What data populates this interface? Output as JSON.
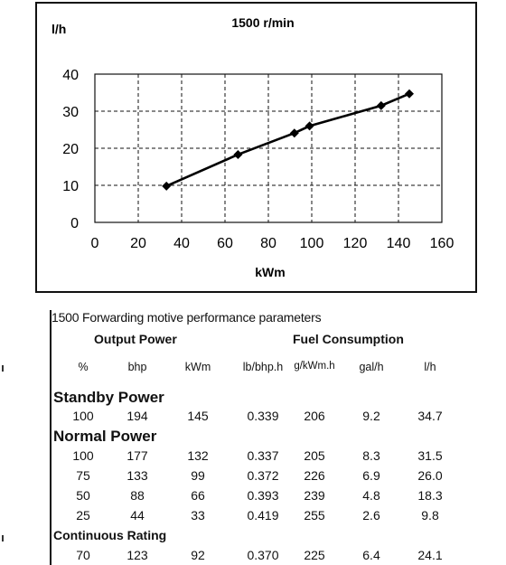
{
  "chart_data": {
    "type": "line",
    "title": "1500 r/min",
    "ylabel": "l/h",
    "xlabel": "kWm",
    "xlim": [
      0,
      160
    ],
    "ylim": [
      0,
      40
    ],
    "xticks": [
      0,
      20,
      40,
      60,
      80,
      100,
      120,
      140,
      160
    ],
    "yticks": [
      0,
      10,
      20,
      30,
      40
    ],
    "grid": true,
    "series": [
      {
        "points": [
          [
            33,
            9.8
          ],
          [
            66,
            18.3
          ],
          [
            92,
            24.1
          ],
          [
            99,
            26.0
          ],
          [
            132,
            31.5
          ],
          [
            145,
            34.7
          ]
        ]
      }
    ]
  },
  "table": {
    "title": "1500 Forwarding motive performance parameters",
    "group_headers": {
      "output": "Output Power",
      "fuel": "Fuel Consumption"
    },
    "columns": [
      "%",
      "bhp",
      "kWm",
      "lb/bhp.h",
      "g/kWm.h",
      "gal/h",
      "l/h"
    ],
    "sections": [
      {
        "label": "Standby Power",
        "rows": [
          [
            "100",
            "194",
            "145",
            "0.339",
            "206",
            "9.2",
            "34.7"
          ]
        ]
      },
      {
        "label": "Normal Power",
        "rows": [
          [
            "100",
            "177",
            "132",
            "0.337",
            "205",
            "8.3",
            "31.5"
          ],
          [
            "75",
            "133",
            "99",
            "0.372",
            "226",
            "6.9",
            "26.0"
          ],
          [
            "50",
            "88",
            "66",
            "0.393",
            "239",
            "4.8",
            "18.3"
          ],
          [
            "25",
            "44",
            "33",
            "0.419",
            "255",
            "2.6",
            "9.8"
          ]
        ]
      },
      {
        "label": "Continuous Rating",
        "rows": [
          [
            "70",
            "123",
            "92",
            "0.370",
            "225",
            "6.4",
            "24.1"
          ]
        ]
      }
    ]
  }
}
